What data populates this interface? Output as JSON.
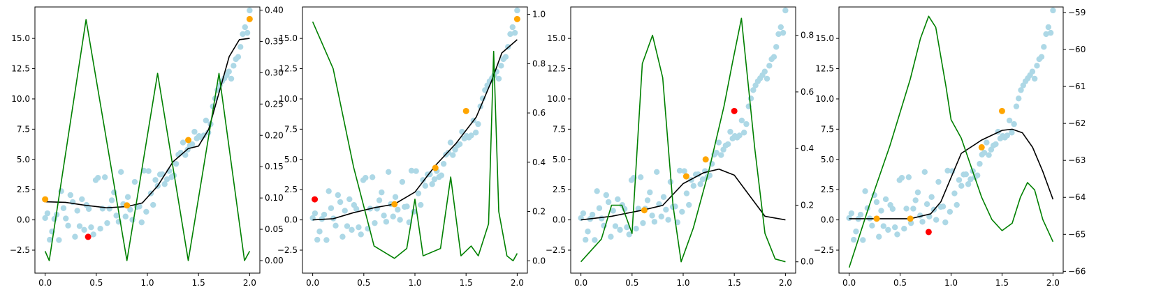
{
  "colors": {
    "data_points": "#add8e6",
    "selected_points": "#ffa500",
    "next_point": "#ff0000",
    "mean_curve": "#000000",
    "acquisition_curve": "#008000"
  },
  "chart_data": [
    {
      "type": "scatter",
      "xlim": [
        -0.1,
        2.1
      ],
      "ylim": [
        -4.4,
        17.6
      ],
      "y2lim": [
        -0.02,
        0.405
      ],
      "x_ticks": [
        "0.0",
        "0.5",
        "1.0",
        "1.5",
        "2.0"
      ],
      "y_ticks": [
        "-2.5",
        "0.0",
        "2.5",
        "5.0",
        "7.5",
        "10.0",
        "12.5",
        "15.0"
      ],
      "y2_ticks": [
        "0.00",
        "0.05",
        "0.10",
        "0.15",
        "0.20",
        "0.25",
        "0.30",
        "0.35",
        "0.40"
      ],
      "selected_points": [
        [
          0.0,
          1.7
        ],
        [
          0.8,
          1.2
        ],
        [
          1.4,
          6.6
        ],
        [
          2.0,
          16.6
        ]
      ],
      "next_point": [
        [
          0.42,
          -1.4
        ]
      ],
      "mean_curve": [
        [
          0.0,
          1.5
        ],
        [
          0.2,
          1.45
        ],
        [
          0.4,
          1.2
        ],
        [
          0.6,
          1.0
        ],
        [
          0.8,
          1.1
        ],
        [
          0.95,
          1.4
        ],
        [
          1.1,
          2.8
        ],
        [
          1.25,
          4.8
        ],
        [
          1.4,
          5.9
        ],
        [
          1.5,
          6.1
        ],
        [
          1.6,
          7.5
        ],
        [
          1.7,
          10.5
        ],
        [
          1.8,
          13.5
        ],
        [
          1.9,
          14.9
        ],
        [
          2.0,
          15.0
        ]
      ],
      "acquisition_curve": [
        [
          0.0,
          0.015
        ],
        [
          0.04,
          0.0
        ],
        [
          0.4,
          0.385
        ],
        [
          0.8,
          0.0
        ],
        [
          1.1,
          0.299
        ],
        [
          1.4,
          0.0
        ],
        [
          1.7,
          0.299
        ],
        [
          1.95,
          0.0
        ],
        [
          2.0,
          0.015
        ]
      ]
    },
    {
      "type": "scatter",
      "xlim": [
        -0.1,
        2.1
      ],
      "ylim": [
        -4.4,
        17.6
      ],
      "y2lim": [
        -0.05,
        1.03
      ],
      "x_ticks": [
        "0.0",
        "0.5",
        "1.0",
        "1.5",
        "2.0"
      ],
      "y_ticks": [
        "-2.5",
        "0.0",
        "2.5",
        "5.0",
        "7.5",
        "10.0",
        "12.5",
        "15.0"
      ],
      "y2_ticks": [
        "0.0",
        "0.2",
        "0.4",
        "0.6",
        "0.8",
        "1.0"
      ],
      "selected_points": [
        [
          0.8,
          1.3
        ],
        [
          1.2,
          4.3
        ],
        [
          1.5,
          9.0
        ],
        [
          2.0,
          16.6
        ]
      ],
      "next_point": [
        [
          0.02,
          1.7
        ]
      ],
      "mean_curve": [
        [
          0.0,
          0.0
        ],
        [
          0.2,
          0.1
        ],
        [
          0.4,
          0.6
        ],
        [
          0.6,
          1.0
        ],
        [
          0.8,
          1.3
        ],
        [
          1.0,
          2.3
        ],
        [
          1.2,
          4.5
        ],
        [
          1.4,
          6.3
        ],
        [
          1.6,
          8.5
        ],
        [
          1.75,
          11.5
        ],
        [
          1.85,
          13.8
        ],
        [
          2.0,
          14.9
        ]
      ],
      "acquisition_curve": [
        [
          0.0,
          0.97
        ],
        [
          0.2,
          0.78
        ],
        [
          0.4,
          0.38
        ],
        [
          0.6,
          0.06
        ],
        [
          0.8,
          0.01
        ],
        [
          0.92,
          0.05
        ],
        [
          1.0,
          0.25
        ],
        [
          1.08,
          0.02
        ],
        [
          1.25,
          0.05
        ],
        [
          1.35,
          0.34
        ],
        [
          1.45,
          0.02
        ],
        [
          1.55,
          0.06
        ],
        [
          1.62,
          0.02
        ],
        [
          1.72,
          0.15
        ],
        [
          1.77,
          0.85
        ],
        [
          1.82,
          0.2
        ],
        [
          1.9,
          0.02
        ],
        [
          1.96,
          0.0
        ],
        [
          2.0,
          0.03
        ]
      ]
    },
    {
      "type": "scatter",
      "xlim": [
        -0.1,
        2.1
      ],
      "ylim": [
        -4.4,
        17.6
      ],
      "y2lim": [
        -0.04,
        0.9
      ],
      "x_ticks": [
        "0.0",
        "0.5",
        "1.0",
        "1.5",
        "2.0"
      ],
      "y_ticks": [
        "-2.5",
        "0.0",
        "2.5",
        "5.0",
        "7.5",
        "10.0",
        "12.5",
        "15.0"
      ],
      "y2_ticks": [
        "0.0",
        "0.2",
        "0.4",
        "0.6",
        "0.8"
      ],
      "selected_points": [
        [
          0.62,
          0.8
        ],
        [
          1.03,
          3.6
        ],
        [
          1.22,
          5.0
        ]
      ],
      "next_point": [
        [
          1.5,
          9.0
        ]
      ],
      "mean_curve": [
        [
          0.0,
          0.0
        ],
        [
          0.3,
          0.3
        ],
        [
          0.6,
          0.8
        ],
        [
          0.8,
          1.2
        ],
        [
          1.0,
          3.0
        ],
        [
          1.2,
          3.9
        ],
        [
          1.35,
          4.2
        ],
        [
          1.5,
          3.7
        ],
        [
          1.65,
          2.0
        ],
        [
          1.8,
          0.3
        ],
        [
          2.0,
          0.0
        ]
      ],
      "acquisition_curve": [
        [
          0.0,
          0.0
        ],
        [
          0.2,
          0.08
        ],
        [
          0.3,
          0.2
        ],
        [
          0.4,
          0.2
        ],
        [
          0.5,
          0.1
        ],
        [
          0.6,
          0.7
        ],
        [
          0.7,
          0.8
        ],
        [
          0.8,
          0.65
        ],
        [
          0.9,
          0.2
        ],
        [
          0.98,
          0.0
        ],
        [
          1.1,
          0.12
        ],
        [
          1.25,
          0.32
        ],
        [
          1.4,
          0.55
        ],
        [
          1.48,
          0.7
        ],
        [
          1.57,
          0.86
        ],
        [
          1.7,
          0.4
        ],
        [
          1.8,
          0.1
        ],
        [
          1.9,
          0.01
        ],
        [
          2.0,
          0.0
        ]
      ]
    },
    {
      "type": "scatter",
      "xlim": [
        -0.1,
        2.1
      ],
      "ylim": [
        -4.4,
        17.6
      ],
      "y2lim": [
        -66.05,
        -58.85
      ],
      "x_ticks": [
        "0.0",
        "0.5",
        "1.0",
        "1.5",
        "2.0"
      ],
      "y_ticks": [
        "-2.5",
        "0.0",
        "2.5",
        "5.0",
        "7.5",
        "10.0",
        "12.5",
        "15.0"
      ],
      "y2_ticks": [
        "-66",
        "-65",
        "-64",
        "-63",
        "-62",
        "-61",
        "-60",
        "-59"
      ],
      "selected_points": [
        [
          0.27,
          0.1
        ],
        [
          0.6,
          0.1
        ],
        [
          1.3,
          6.0
        ],
        [
          1.5,
          9.0
        ]
      ],
      "next_point": [
        [
          0.78,
          -1.0
        ]
      ],
      "mean_curve": [
        [
          0.0,
          0.1
        ],
        [
          0.3,
          0.1
        ],
        [
          0.6,
          0.1
        ],
        [
          0.8,
          0.5
        ],
        [
          0.9,
          1.5
        ],
        [
          1.0,
          3.5
        ],
        [
          1.1,
          5.5
        ],
        [
          1.3,
          6.6
        ],
        [
          1.5,
          7.4
        ],
        [
          1.6,
          7.5
        ],
        [
          1.7,
          7.2
        ],
        [
          1.8,
          6.0
        ],
        [
          1.9,
          4.0
        ],
        [
          2.0,
          1.7
        ]
      ],
      "acquisition_curve": [
        [
          0.0,
          -65.9
        ],
        [
          0.2,
          -64.2
        ],
        [
          0.4,
          -62.6
        ],
        [
          0.6,
          -60.8
        ],
        [
          0.7,
          -59.7
        ],
        [
          0.78,
          -59.1
        ],
        [
          0.85,
          -59.4
        ],
        [
          0.95,
          -61.0
        ],
        [
          1.0,
          -61.9
        ],
        [
          1.1,
          -62.4
        ],
        [
          1.2,
          -63.2
        ],
        [
          1.3,
          -64.0
        ],
        [
          1.4,
          -64.6
        ],
        [
          1.5,
          -64.9
        ],
        [
          1.6,
          -64.7
        ],
        [
          1.68,
          -64.0
        ],
        [
          1.75,
          -63.6
        ],
        [
          1.82,
          -63.8
        ],
        [
          1.9,
          -64.6
        ],
        [
          2.0,
          -65.2
        ]
      ]
    }
  ]
}
